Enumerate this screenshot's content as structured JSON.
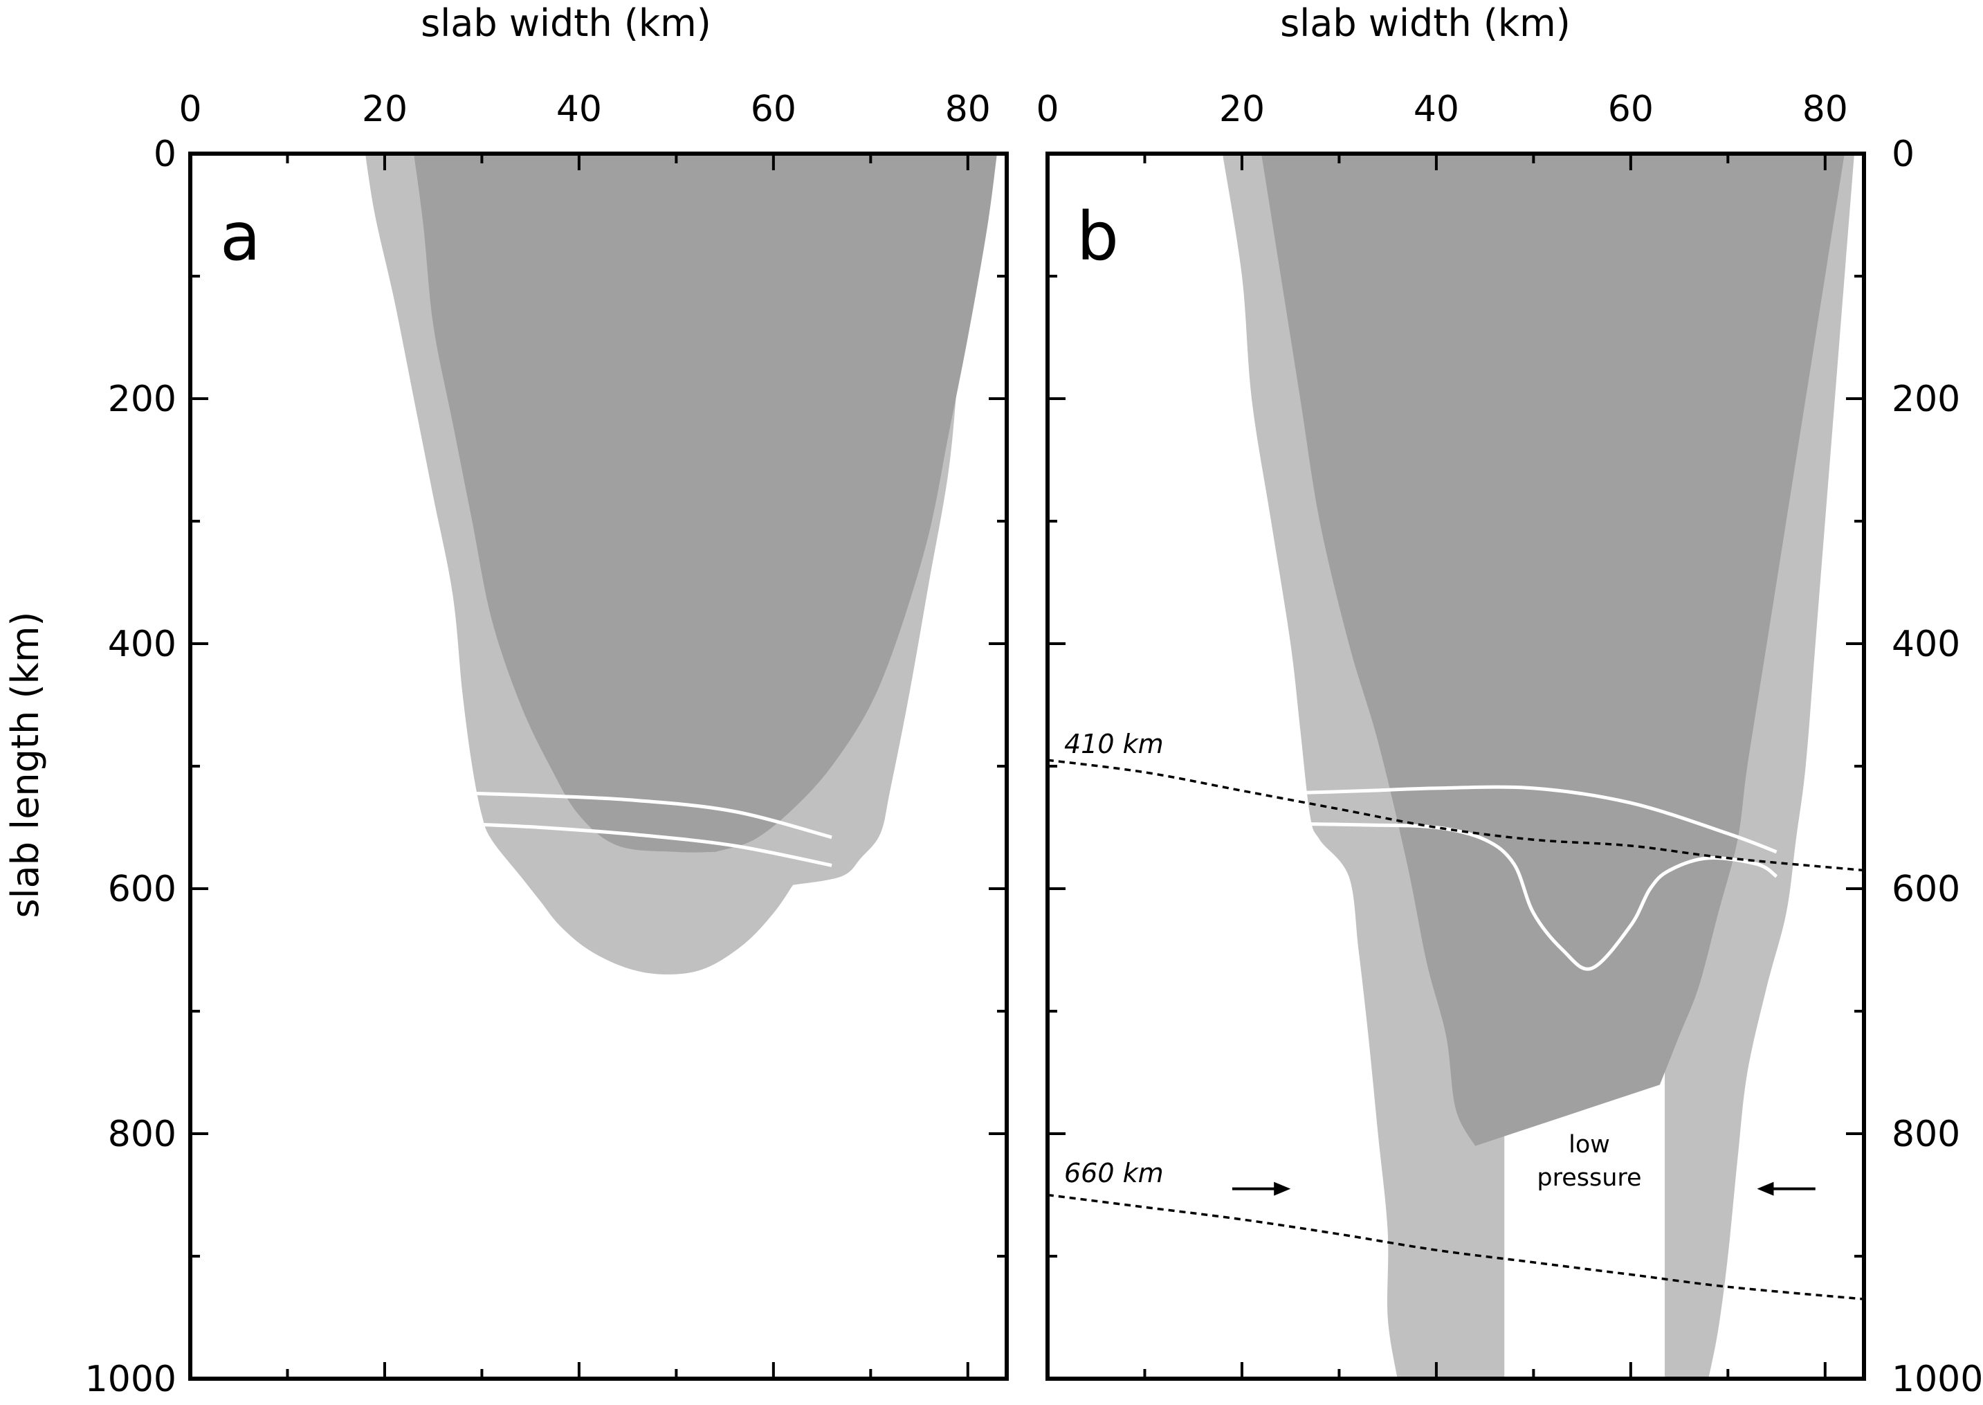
{
  "colors": {
    "inner_region": "#a0a0a0",
    "outer_region": "#c0c0c0",
    "boundary_lines": "#ffffff",
    "axes": "#000000"
  },
  "chart_data": [
    {
      "type": "area",
      "panel_label": "a",
      "xlabel": "slab width (km)",
      "ylabel": "slab length (km)",
      "xlim": [
        0,
        84
      ],
      "ylim": [
        0,
        1000
      ],
      "y_inverted": true,
      "x_ticks": [
        "0",
        "20",
        "40",
        "60",
        "80"
      ],
      "y_ticks": [
        "0",
        "200",
        "400",
        "600",
        "800",
        "1000"
      ],
      "x_axis_position": "top",
      "y_axis_position": "left",
      "regions": [
        {
          "id": "outer",
          "color": "#c0c0c0",
          "left": [
            [
              18,
              0
            ],
            [
              19,
              50
            ],
            [
              21,
              120
            ],
            [
              23,
              200
            ],
            [
              25,
              280
            ],
            [
              27,
              360
            ],
            [
              28,
              440
            ],
            [
              29,
              500
            ],
            [
              30,
              540
            ],
            [
              31,
              560
            ],
            [
              34,
              590
            ],
            [
              36,
              610
            ],
            [
              38,
              630
            ],
            [
              41,
              650
            ],
            [
              45,
              665
            ],
            [
              49,
              670
            ],
            [
              53,
              665
            ],
            [
              57,
              645
            ],
            [
              60,
              620
            ],
            [
              62,
              597
            ]
          ],
          "right": [
            [
              83,
              0
            ],
            [
              81,
              50
            ],
            [
              80,
              100
            ],
            [
              79,
              180
            ],
            [
              78,
              260
            ],
            [
              76,
              350
            ],
            [
              74,
              440
            ],
            [
              72,
              520
            ],
            [
              71,
              555
            ],
            [
              69,
              575
            ],
            [
              67,
              590
            ],
            [
              62,
              597
            ]
          ]
        },
        {
          "id": "inner",
          "color": "#a0a0a0",
          "left": [
            [
              23,
              0
            ],
            [
              24,
              60
            ],
            [
              25,
              140
            ],
            [
              27,
              220
            ],
            [
              29,
              300
            ],
            [
              31,
              380
            ],
            [
              34,
              450
            ],
            [
              37,
              500
            ],
            [
              40,
              540
            ],
            [
              44,
              565
            ],
            [
              50,
              570
            ],
            [
              54,
              570
            ]
          ],
          "right": [
            [
              83,
              0
            ],
            [
              82,
              60
            ],
            [
              80,
              150
            ],
            [
              78,
              230
            ],
            [
              76,
              310
            ],
            [
              73,
              390
            ],
            [
              70,
              450
            ],
            [
              66,
              500
            ],
            [
              62,
              535
            ],
            [
              58,
              560
            ],
            [
              54,
              570
            ]
          ]
        }
      ],
      "boundary_lines": [
        {
          "points": [
            [
              28,
              522
            ],
            [
              36,
              524
            ],
            [
              46,
              528
            ],
            [
              56,
              537
            ],
            [
              66,
              558
            ]
          ]
        },
        {
          "points": [
            [
              28,
              547
            ],
            [
              36,
              550
            ],
            [
              46,
              556
            ],
            [
              56,
              565
            ],
            [
              66,
              581
            ]
          ]
        }
      ]
    },
    {
      "type": "area",
      "panel_label": "b",
      "xlabel": "slab width (km)",
      "ylabel": "",
      "xlim": [
        0,
        84
      ],
      "ylim": [
        0,
        1000
      ],
      "y_inverted": true,
      "x_ticks": [
        "0",
        "20",
        "40",
        "60",
        "80"
      ],
      "y_ticks": [
        "0",
        "200",
        "400",
        "600",
        "800",
        "1000"
      ],
      "x_axis_position": "top",
      "y_axis_position": "right",
      "regions": [
        {
          "id": "outer",
          "color": "#c0c0c0",
          "left": [
            [
              18,
              0
            ],
            [
              20,
              100
            ],
            [
              21,
              200
            ],
            [
              23,
              300
            ],
            [
              25,
              400
            ],
            [
              26,
              470
            ],
            [
              27,
              540
            ],
            [
              28,
              560
            ],
            [
              31,
              590
            ],
            [
              32,
              650
            ],
            [
              33,
              720
            ],
            [
              34,
              800
            ],
            [
              35,
              880
            ],
            [
              35,
              950
            ],
            [
              36,
              1000
            ]
          ],
          "right": [
            [
              83,
              0
            ],
            [
              82,
              100
            ],
            [
              81,
              200
            ],
            [
              80,
              300
            ],
            [
              79,
              400
            ],
            [
              78,
              500
            ],
            [
              77,
              560
            ],
            [
              76,
              620
            ],
            [
              74,
              680
            ],
            [
              72,
              750
            ],
            [
              71,
              820
            ],
            [
              70,
              900
            ],
            [
              69,
              960
            ],
            [
              68,
              1000
            ]
          ],
          "cutout": {
            "left_x": 47,
            "right_x": 63.5,
            "bottom_of_region": 1000
          }
        },
        {
          "id": "inner",
          "color": "#a0a0a0",
          "left": [
            [
              22,
              0
            ],
            [
              24,
              100
            ],
            [
              26,
              200
            ],
            [
              28,
              300
            ],
            [
              31,
              400
            ],
            [
              34,
              480
            ],
            [
              37,
              580
            ],
            [
              39,
              660
            ],
            [
              41,
              720
            ],
            [
              42,
              780
            ],
            [
              44,
              810
            ]
          ],
          "right": [
            [
              82,
              0
            ],
            [
              80,
              100
            ],
            [
              78,
              200
            ],
            [
              76,
              300
            ],
            [
              74,
              400
            ],
            [
              72,
              500
            ],
            [
              71,
              560
            ],
            [
              69,
              620
            ],
            [
              67,
              680
            ],
            [
              65,
              720
            ],
            [
              63,
              760
            ]
          ]
        }
      ],
      "boundary_lines": [
        {
          "points": [
            [
              25,
              522
            ],
            [
              33,
              520
            ],
            [
              40,
              518
            ],
            [
              50,
              518
            ],
            [
              60,
              530
            ],
            [
              70,
              555
            ],
            [
              75,
              570
            ]
          ]
        },
        {
          "points": [
            [
              25,
              547
            ],
            [
              33,
              548
            ],
            [
              40,
              550
            ],
            [
              45,
              560
            ],
            [
              48,
              580
            ],
            [
              50,
              620
            ],
            [
              53,
              650
            ],
            [
              56,
              665
            ],
            [
              60,
              630
            ],
            [
              62,
              600
            ],
            [
              64,
              585
            ],
            [
              68,
              575
            ],
            [
              73,
              580
            ],
            [
              75,
              590
            ]
          ]
        }
      ],
      "reference_lines": [
        {
          "label": "410 km",
          "style": "dotted",
          "points": [
            [
              0,
              495
            ],
            [
              10,
              505
            ],
            [
              20,
              520
            ],
            [
              30,
              535
            ],
            [
              40,
              550
            ],
            [
              50,
              560
            ],
            [
              60,
              565
            ],
            [
              70,
              575
            ],
            [
              84,
              585
            ]
          ]
        },
        {
          "label": "660 km",
          "style": "dotted",
          "points": [
            [
              0,
              850
            ],
            [
              10,
              860
            ],
            [
              20,
              870
            ],
            [
              30,
              882
            ],
            [
              40,
              895
            ],
            [
              50,
              905
            ],
            [
              60,
              915
            ],
            [
              70,
              925
            ],
            [
              84,
              935
            ]
          ]
        }
      ],
      "annotations": [
        {
          "text": [
            "low",
            "pressure"
          ],
          "x": 55,
          "y": 830
        }
      ],
      "arrows": [
        {
          "direction": "right",
          "x_from": 19,
          "x_to": 25,
          "y": 845
        },
        {
          "direction": "left",
          "x_from": 79,
          "x_to": 73,
          "y": 845
        }
      ]
    }
  ]
}
